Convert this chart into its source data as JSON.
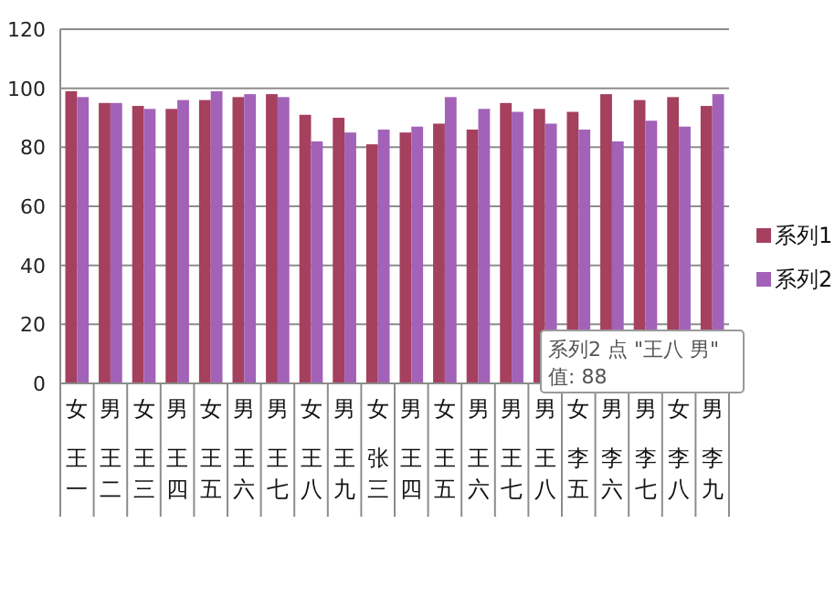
{
  "chart_data": {
    "type": "bar",
    "categories": [
      "女王一",
      "男王二",
      "女王三",
      "男王四",
      "女王五",
      "男王六",
      "男王七",
      "女王八",
      "男王九",
      "女张三",
      "男王四",
      "女王五",
      "男王六",
      "男王七",
      "男王八",
      "女李五",
      "男李六",
      "男李七",
      "女李八",
      "男李九"
    ],
    "series": [
      {
        "name": "系列1",
        "color": "#a5405e",
        "values": [
          99,
          95,
          94,
          93,
          96,
          97,
          98,
          91,
          90,
          81,
          85,
          88,
          86,
          95,
          93,
          92,
          98,
          96,
          97,
          94
        ]
      },
      {
        "name": "系列2",
        "color": "#a262b8",
        "values": [
          97,
          95,
          93,
          96,
          99,
          98,
          97,
          82,
          85,
          86,
          87,
          97,
          93,
          92,
          88,
          86,
          82,
          89,
          87,
          98
        ]
      }
    ],
    "ylim": [
      0,
      120
    ],
    "yticks": [
      0,
      20,
      40,
      60,
      80,
      100,
      120
    ],
    "grid": "y",
    "legend": "right",
    "annotations": [
      "系列2 点 \"王八 男\"\n值: 88"
    ]
  }
}
